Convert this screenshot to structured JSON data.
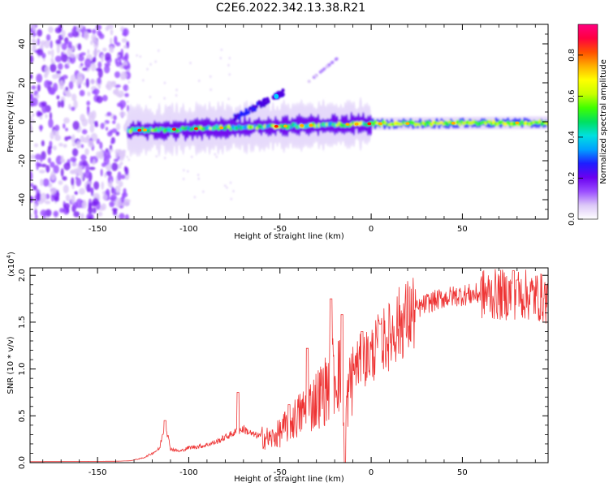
{
  "page": {
    "title": "C2E6.2022.342.13.38.R21"
  },
  "chart_data": [
    {
      "type": "heatmap",
      "title": "C2E6.2022.342.13.38.R21",
      "xlabel": "Height of straight line (km)",
      "ylabel": "Frequency (Hz)",
      "xlim": [
        -187,
        97
      ],
      "ylim": [
        -50,
        50
      ],
      "xticks": [
        -150,
        -100,
        -50,
        0,
        50
      ],
      "yticks": [
        -40,
        -20,
        0,
        20,
        40
      ],
      "colorbar": {
        "label": "Normalized spectral amplitude",
        "range": [
          0,
          0.95
        ],
        "ticks": [
          0.0,
          0.2,
          0.4,
          0.6,
          0.8
        ],
        "colors": [
          "#ffffff",
          "#dcc8f8",
          "#9a4dff",
          "#6a00f0",
          "#1e1eff",
          "#00a0ff",
          "#00e0e0",
          "#00e060",
          "#40ff00",
          "#c8ff00",
          "#ffff00",
          "#ffb000",
          "#ff5000",
          "#ff0040",
          "#ff0080"
        ]
      },
      "features": [
        {
          "name": "noise-region",
          "x_range": [
            -187,
            -133
          ],
          "freq_range": [
            -50,
            50
          ],
          "amplitude": 0.1
        },
        {
          "name": "main-band",
          "x_range": [
            -133,
            97
          ],
          "freq_center": [
            -5,
            0
          ],
          "amplitude": 0.55
        },
        {
          "name": "upper-branch",
          "x_range": [
            -75,
            -48
          ],
          "freq_range": [
            5,
            16
          ],
          "amplitude": 0.3
        },
        {
          "name": "upper-branch-faint",
          "x_range": [
            -35,
            -18
          ],
          "freq_range": [
            20,
            33
          ],
          "amplitude": 0.15
        }
      ]
    },
    {
      "type": "line",
      "xlabel": "Height of straight line (km)",
      "ylabel": "SNR (10 * v/v)",
      "yscale_label": "(x10",
      "yscale_exp": "4",
      "yscale_close": ")",
      "xlim": [
        -187,
        97
      ],
      "ylim": [
        0,
        2.08
      ],
      "xticks": [
        -150,
        -100,
        -50,
        0,
        50
      ],
      "yticks": [
        0.0,
        0.5,
        1.0,
        1.5,
        2.0
      ],
      "ytick_labels": [
        "0.0",
        "0.5",
        "1.0",
        "1.5",
        "2.0"
      ],
      "series": [
        {
          "name": "SNR",
          "color": "#ee3333",
          "trend": [
            [
              -187,
              0.01
            ],
            [
              -140,
              0.015
            ],
            [
              -132,
              0.02
            ],
            [
              -125,
              0.05
            ],
            [
              -120,
              0.1
            ],
            [
              -116,
              0.15
            ],
            [
              -113,
              0.43
            ],
            [
              -110,
              0.15
            ],
            [
              -105,
              0.12
            ],
            [
              -100,
              0.16
            ],
            [
              -92,
              0.18
            ],
            [
              -85,
              0.22
            ],
            [
              -80,
              0.27
            ],
            [
              -75,
              0.32
            ],
            [
              -70,
              0.36
            ],
            [
              -65,
              0.3
            ],
            [
              -60,
              0.28
            ],
            [
              -55,
              0.25
            ],
            [
              -50,
              0.32
            ],
            [
              -45,
              0.42
            ],
            [
              -40,
              0.5
            ],
            [
              -35,
              0.58
            ],
            [
              -30,
              0.68
            ],
            [
              -25,
              0.78
            ],
            [
              -22,
              0.9
            ],
            [
              -18,
              1.0
            ],
            [
              -14,
              0.55
            ],
            [
              -10,
              1.0
            ],
            [
              -5,
              1.1
            ],
            [
              0,
              1.15
            ],
            [
              5,
              1.28
            ],
            [
              10,
              1.35
            ],
            [
              15,
              1.48
            ],
            [
              20,
              1.55
            ],
            [
              25,
              1.63
            ],
            [
              30,
              1.7
            ],
            [
              40,
              1.76
            ],
            [
              50,
              1.79
            ],
            [
              60,
              1.8
            ],
            [
              70,
              1.79
            ],
            [
              80,
              1.8
            ],
            [
              90,
              1.78
            ],
            [
              97,
              1.74
            ]
          ],
          "peaks": [
            [
              -113,
              0.45
            ],
            [
              -73,
              0.75
            ],
            [
              -45,
              0.62
            ],
            [
              -35,
              1.22
            ],
            [
              -22,
              1.75
            ],
            [
              -16,
              1.58
            ],
            [
              -5,
              1.4
            ],
            [
              5,
              1.48
            ],
            [
              78,
              2.05
            ],
            [
              80,
              1.95
            ]
          ]
        }
      ]
    }
  ]
}
